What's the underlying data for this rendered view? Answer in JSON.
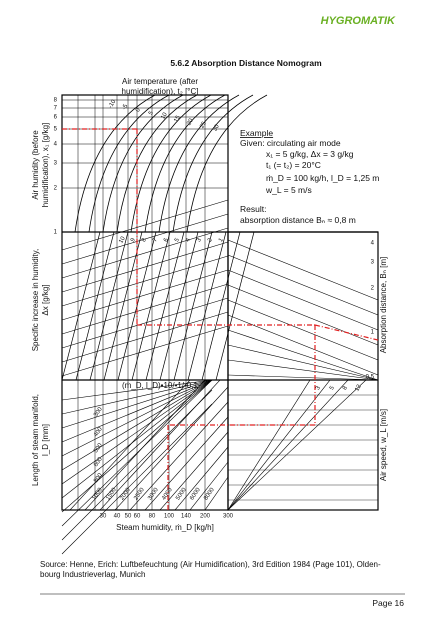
{
  "header": {
    "logo": "HYGROMATIK",
    "title": "5.6.2   Absorption Distance Nomogram"
  },
  "nomogram": {
    "top_axis_title": [
      "Air temperature (after",
      "humidification), t₂ [°C]"
    ],
    "left_title_1": [
      "Air humidity (before",
      "humidification), x₁ [g/kg]"
    ],
    "left_title_2": [
      "Specific increase in humidity,",
      "Δx [g/kg]"
    ],
    "left_title_3": [
      "Length of steam manifold,",
      "l_D [mm]"
    ],
    "right_title_1": "Absorption distance, Bₙ [m]",
    "right_title_2": "Air speed, w_L [m/s]",
    "bottom_title": "Steam humidity, ṁ_D [kg/h]",
    "humidity_ticks": [
      "8",
      "7",
      "6",
      "5",
      "4",
      "3",
      "2",
      "1"
    ],
    "temperature_labels": [
      "-10",
      "-5",
      "0",
      "5",
      "10",
      "15",
      "20",
      "25",
      "30"
    ],
    "increase_labels": [
      "10",
      "9",
      "8",
      "7",
      "6",
      "5",
      "4",
      "3",
      "2",
      "1"
    ],
    "distance_ticks": [
      "4",
      "3",
      "2",
      "1",
      "0,5"
    ],
    "multiplier_label": "(ṁ_D, l_D)•10/•1/•0,1",
    "length_labels": [
      "300",
      "400",
      "500",
      "600",
      "800"
    ],
    "steam_labels": [
      "1000",
      "1500",
      "2000",
      "2500",
      "3000",
      "4000",
      "5000",
      "6000",
      "8000"
    ],
    "speed_labels": [
      "3",
      "5",
      "8",
      "12"
    ],
    "bottom_ticks": [
      "30",
      "40",
      "50",
      "60",
      "80",
      "100",
      "140",
      "200",
      "300"
    ]
  },
  "example": {
    "heading": "Example",
    "given": "Given: circulating air mode",
    "lines": [
      "x₁ = 5 g/kg, Δx = 3 g/kg",
      "t₁ (= t₂) = 20°C",
      "ṁ_D = 100 kg/h, l_D = 1,25 m",
      "w_L = 5 m/s"
    ],
    "result_heading": "Result:",
    "result": "absorption distance Bₙ ≈ 0,8 m"
  },
  "source": [
    "Source: Henne, Erich: Luftbefeuchtung (Air Humidification), 3rd Edition 1984 (Page 101), Olden-",
    "bourg Industrieverlag, Munich"
  ],
  "footer": "Page 16"
}
